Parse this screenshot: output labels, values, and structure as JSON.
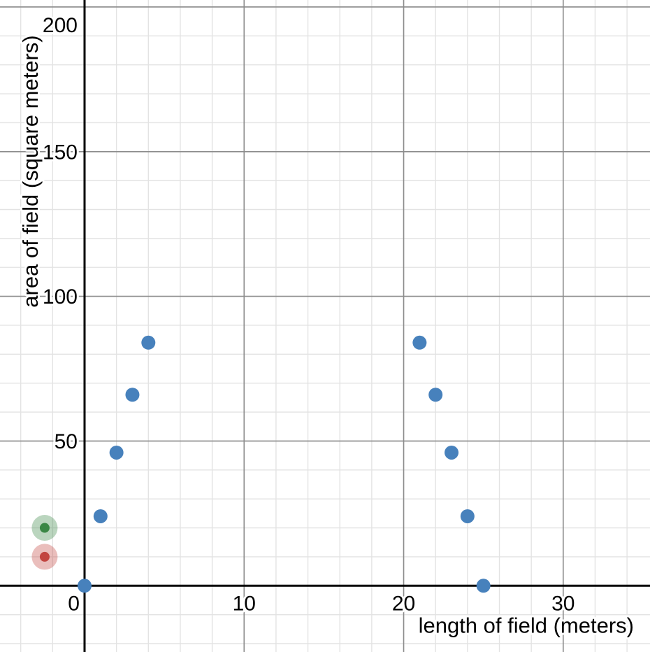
{
  "chart_data": {
    "type": "scatter",
    "title": "",
    "xlabel": "length of field (meters)",
    "ylabel": "area of field (square meters)",
    "xlim": [
      -5.3,
      35.44
    ],
    "ylim": [
      -22.9,
      202.4
    ],
    "x_ticks": [
      0,
      10,
      20,
      30
    ],
    "x_tick_labels": [
      "0",
      "10",
      "20",
      "30"
    ],
    "y_ticks": [
      50,
      100,
      150,
      200
    ],
    "y_tick_labels": [
      "50",
      "100",
      "150",
      "200"
    ],
    "minor_grid_step_x": 2,
    "minor_grid_step_y": 10,
    "grid": "on",
    "legend": "none",
    "colors": {
      "background": "#ffffff",
      "axis": "#000000",
      "major_grid": "#8c8c8c",
      "minor_grid": "#e3e3e3",
      "blue_point": "#4781bc",
      "green_point": "#3a8745",
      "red_point": "#c24540"
    },
    "series": [
      {
        "name": "field-area-data-point",
        "color": "#4781bc",
        "marker_radius": 10,
        "draggable": false,
        "points": [
          [
            0,
            0
          ],
          [
            1,
            24
          ],
          [
            2,
            46
          ],
          [
            3,
            66
          ],
          [
            4,
            84
          ],
          [
            21,
            84
          ],
          [
            22,
            66
          ],
          [
            23,
            46
          ],
          [
            24,
            24
          ],
          [
            25,
            0
          ]
        ]
      },
      {
        "name": "green-movable-point",
        "color": "#3a8745",
        "marker_radius": 7,
        "halo_radius": 18.5,
        "halo_opacity": 0.35,
        "draggable": true,
        "points": [
          [
            -2.5,
            20
          ]
        ]
      },
      {
        "name": "red-movable-point",
        "color": "#c24540",
        "marker_radius": 7,
        "halo_radius": 18.5,
        "halo_opacity": 0.35,
        "draggable": true,
        "points": [
          [
            -2.5,
            10
          ]
        ]
      }
    ]
  }
}
